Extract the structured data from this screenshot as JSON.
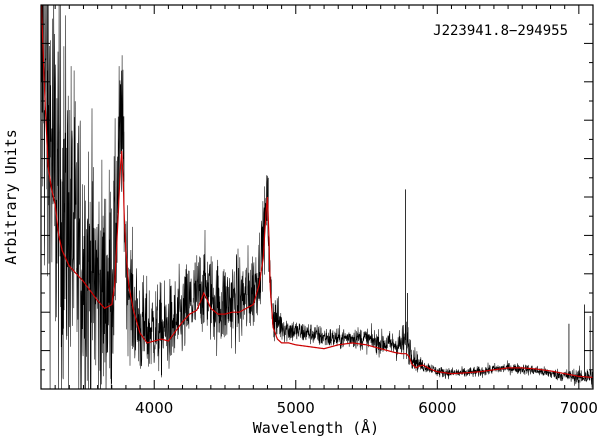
{
  "chart_data": {
    "type": "line",
    "title": "J223941.8−294955",
    "xlabel": "Wavelength (Å)",
    "ylabel": "Arbitrary Units",
    "xlim": [
      3200,
      7100
    ],
    "ylim": [
      0,
      10
    ],
    "x_ticks": [
      4000,
      5000,
      6000,
      7000
    ],
    "x_tick_labels": [
      "4000",
      "5000",
      "6000",
      "7000"
    ],
    "grid": false,
    "colors": {
      "observed": "#000000",
      "model": "#cc0000"
    },
    "series": [
      {
        "key": "observed",
        "style": "noisy",
        "x": [
          3200,
          3250,
          3300,
          3350,
          3400,
          3450,
          3500,
          3550,
          3600,
          3650,
          3700,
          3720,
          3740,
          3760,
          3770,
          3780,
          3790,
          3800,
          3820,
          3850,
          3900,
          3950,
          4000,
          4050,
          4100,
          4150,
          4200,
          4250,
          4300,
          4330,
          4350,
          4370,
          4400,
          4450,
          4500,
          4550,
          4600,
          4650,
          4700,
          4740,
          4770,
          4790,
          4800,
          4810,
          4820,
          4840,
          4870,
          4900,
          4950,
          5000,
          5100,
          5200,
          5300,
          5400,
          5500,
          5600,
          5700,
          5750,
          5780,
          5800,
          5820,
          5850,
          5870,
          5900,
          5950,
          6000,
          6100,
          6200,
          6300,
          6400,
          6500,
          6600,
          6700,
          6800,
          6900,
          7000,
          7100
        ],
        "values": [
          9.3,
          6.9,
          5.4,
          4.7,
          4.3,
          3.6,
          3.3,
          3.0,
          2.6,
          2.4,
          2.8,
          3.4,
          5.2,
          6.6,
          6.9,
          6.2,
          4.6,
          3.5,
          2.8,
          2.1,
          1.6,
          1.5,
          1.6,
          1.5,
          1.6,
          1.7,
          1.9,
          2.2,
          2.4,
          2.6,
          2.7,
          2.6,
          2.4,
          2.2,
          2.2,
          2.3,
          2.3,
          2.4,
          2.6,
          3.1,
          3.9,
          4.6,
          4.8,
          3.7,
          2.6,
          1.9,
          1.8,
          1.65,
          1.55,
          1.5,
          1.45,
          1.35,
          1.3,
          1.35,
          1.3,
          1.2,
          1.15,
          1.15,
          1.3,
          1.15,
          0.9,
          0.75,
          0.65,
          0.6,
          0.55,
          0.45,
          0.42,
          0.42,
          0.45,
          0.52,
          0.55,
          0.52,
          0.48,
          0.4,
          0.35,
          0.32,
          0.32
        ],
        "noise": [
          4.5,
          4.2,
          3.9,
          3.6,
          3.3,
          3.0,
          2.8,
          2.6,
          2.4,
          2.3,
          2.2,
          2.0,
          1.8,
          1.6,
          1.5,
          1.4,
          1.3,
          1.3,
          1.2,
          1.1,
          1.0,
          0.9,
          0.85,
          0.85,
          0.85,
          0.85,
          0.85,
          0.85,
          0.85,
          0.85,
          0.85,
          0.85,
          0.85,
          0.85,
          0.85,
          0.85,
          0.85,
          0.85,
          0.8,
          0.75,
          0.7,
          0.65,
          0.65,
          0.6,
          0.55,
          0.5,
          0.45,
          0.3,
          0.25,
          0.22,
          0.2,
          0.2,
          0.2,
          0.2,
          0.22,
          0.22,
          0.25,
          0.35,
          0.4,
          0.35,
          0.25,
          0.2,
          0.15,
          0.12,
          0.1,
          0.1,
          0.1,
          0.1,
          0.1,
          0.1,
          0.1,
          0.1,
          0.1,
          0.1,
          0.12,
          0.15,
          0.2
        ],
        "spikes": [
          {
            "x": 3785,
            "y": 7.1
          },
          {
            "x": 4805,
            "y": 5.5
          },
          {
            "x": 5775,
            "y": 5.2
          },
          {
            "x": 5790,
            "y": 2.5
          },
          {
            "x": 6930,
            "y": 1.7
          },
          {
            "x": 7040,
            "y": 2.2
          },
          {
            "x": 7080,
            "y": 1.9
          }
        ]
      },
      {
        "key": "model",
        "style": "smooth",
        "x": [
          3200,
          3225,
          3250,
          3275,
          3300,
          3325,
          3350,
          3400,
          3450,
          3500,
          3550,
          3600,
          3650,
          3700,
          3720,
          3740,
          3760,
          3770,
          3780,
          3790,
          3800,
          3810,
          3820,
          3850,
          3880,
          3900,
          3950,
          4000,
          4050,
          4100,
          4150,
          4200,
          4250,
          4300,
          4330,
          4350,
          4370,
          4400,
          4450,
          4500,
          4550,
          4600,
          4650,
          4700,
          4740,
          4770,
          4790,
          4800,
          4810,
          4820,
          4840,
          4870,
          4900,
          4950,
          5000,
          5100,
          5200,
          5300,
          5400,
          5500,
          5600,
          5700,
          5750,
          5780,
          5800,
          5820,
          5850,
          5870,
          5900,
          5950,
          6000,
          6100,
          6200,
          6300,
          6400,
          6500,
          6600,
          6700,
          6800,
          6900,
          7000,
          7100
        ],
        "values": [
          10.3,
          7.8,
          5.8,
          5.2,
          4.8,
          4.0,
          3.6,
          3.2,
          3.0,
          2.8,
          2.55,
          2.3,
          2.1,
          2.2,
          2.7,
          4.1,
          5.7,
          6.2,
          5.5,
          4.3,
          3.6,
          3.1,
          2.7,
          2.1,
          1.7,
          1.45,
          1.2,
          1.25,
          1.3,
          1.25,
          1.5,
          1.75,
          1.95,
          2.05,
          2.3,
          2.5,
          2.35,
          2.1,
          1.95,
          1.95,
          2.0,
          2.0,
          2.1,
          2.2,
          2.7,
          3.4,
          4.6,
          5.0,
          4.0,
          2.6,
          1.6,
          1.3,
          1.2,
          1.2,
          1.15,
          1.1,
          1.05,
          1.15,
          1.2,
          1.15,
          1.05,
          0.95,
          0.92,
          0.92,
          0.85,
          0.65,
          0.55,
          0.6,
          0.62,
          0.52,
          0.45,
          0.4,
          0.42,
          0.45,
          0.5,
          0.55,
          0.55,
          0.52,
          0.47,
          0.4,
          0.33,
          0.3
        ]
      }
    ]
  }
}
